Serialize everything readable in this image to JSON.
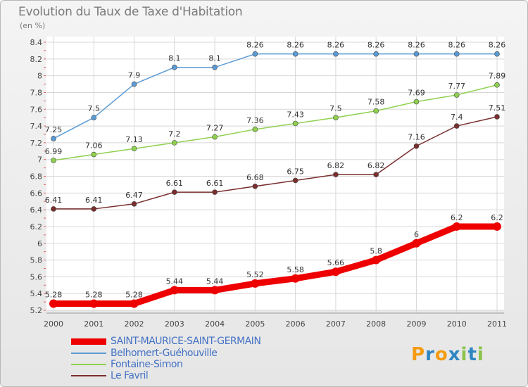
{
  "chart_data": {
    "type": "line",
    "title": "Evolution du Taux de Taxe d'Habitation",
    "subtitle": "(en %)",
    "x": [
      "2000",
      "2001",
      "2002",
      "2003",
      "2004",
      "2005",
      "2006",
      "2007",
      "2008",
      "2009",
      "2010",
      "2011"
    ],
    "ylim": [
      5.2,
      8.4
    ],
    "yticks": [
      "5.2",
      "5.4",
      "5.6",
      "5.8",
      "6",
      "6.2",
      "6.4",
      "6.6",
      "6.8",
      "7",
      "7.2",
      "7.4",
      "7.6",
      "7.8",
      "8",
      "8.2",
      "8.4"
    ],
    "grid": true,
    "legend_position": "bottom-left",
    "series": [
      {
        "name": "SAINT-MAURICE-SAINT-GERMAIN",
        "color": "#ee0000",
        "emphasis": true,
        "values": [
          5.28,
          5.28,
          5.28,
          5.44,
          5.44,
          5.52,
          5.58,
          5.66,
          5.8,
          6,
          6.2,
          6.2
        ],
        "labels": [
          "5.28",
          "5.28",
          "5.28",
          "5.44",
          "5.44",
          "5.52",
          "5.58",
          "5.66",
          "5.8",
          "6",
          "6.2",
          "6.2"
        ]
      },
      {
        "name": "Belhomert-Guéhouville",
        "color": "#5b9bd5",
        "emphasis": false,
        "values": [
          7.25,
          7.5,
          7.9,
          8.1,
          8.1,
          8.26,
          8.26,
          8.26,
          8.26,
          8.26,
          8.26,
          8.26
        ],
        "labels": [
          "7.25",
          "7.5",
          "7.9",
          "8.1",
          "8.1",
          "8.26",
          "8.26",
          "8.26",
          "8.26",
          "8.26",
          "8.26",
          "8.26"
        ]
      },
      {
        "name": "Fontaine-Simon",
        "color": "#8fd14f",
        "emphasis": false,
        "values": [
          6.99,
          7.06,
          7.13,
          7.2,
          7.27,
          7.36,
          7.43,
          7.5,
          7.58,
          7.69,
          7.77,
          7.89
        ],
        "labels": [
          "6.99",
          "7.06",
          "7.13",
          "7.2",
          "7.27",
          "7.36",
          "7.43",
          "7.5",
          "7.58",
          "7.69",
          "7.77",
          "7.89"
        ]
      },
      {
        "name": "Le Favril",
        "color": "#7a2e2e",
        "emphasis": false,
        "values": [
          6.41,
          6.41,
          6.47,
          6.61,
          6.61,
          6.68,
          6.75,
          6.82,
          6.82,
          7.16,
          7.4,
          7.51
        ],
        "labels": [
          "6.41",
          "6.41",
          "6.47",
          "6.61",
          "6.61",
          "6.68",
          "6.75",
          "6.82",
          "6.82",
          "7.16",
          "7.4",
          "7.51"
        ]
      }
    ]
  },
  "logo": {
    "text": "Proxiti",
    "letters": [
      "P",
      "r",
      "o",
      "x",
      "i",
      "t",
      "i"
    ],
    "colors": [
      "#f39c12",
      "#2e86c1",
      "#f39c12",
      "#2e86c1",
      "#8bc34a",
      "#2e86c1",
      "#8bc34a"
    ]
  }
}
